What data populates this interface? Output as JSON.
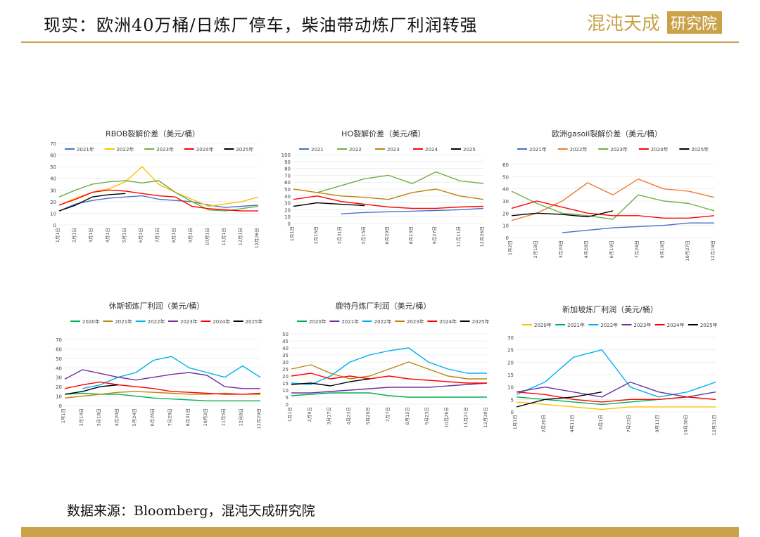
{
  "header": {
    "title": "现实：欧洲40万桶/日炼厂停车，柴油带动炼厂利润转强",
    "logo_text": "混沌天成研究院"
  },
  "footer": {
    "source": "数据来源：Bloomberg，混沌天成研究院"
  },
  "chart_data": [
    {
      "type": "line",
      "title": "RBOB裂解价差（美元/桶）",
      "ylim": [
        0,
        70
      ],
      "yticks": [
        0,
        10,
        20,
        30,
        40,
        50,
        60,
        70
      ],
      "categories": [
        "1月1日",
        "2月1日",
        "3月1日",
        "4月1日",
        "5月1日",
        "6月1日",
        "7月1日",
        "8月1日",
        "9月1日",
        "10月1日",
        "11月1日",
        "12月1日",
        "12月26日"
      ],
      "series": [
        {
          "name": "2021年",
          "color": "#4472c4",
          "values": [
            12,
            18,
            21,
            23,
            24,
            25,
            22,
            21,
            20,
            17,
            15,
            16,
            17
          ]
        },
        {
          "name": "2022年",
          "color": "#ffc000",
          "values": [
            17,
            23,
            28,
            31,
            37,
            50,
            35,
            28,
            22,
            16,
            18,
            20,
            24
          ]
        },
        {
          "name": "2023年",
          "color": "#70ad47",
          "values": [
            24,
            30,
            35,
            37,
            38,
            36,
            38,
            28,
            20,
            13,
            12,
            14,
            16
          ]
        },
        {
          "name": "2024年",
          "color": "#ff0000",
          "values": [
            17,
            22,
            28,
            30,
            29,
            27,
            25,
            24,
            16,
            14,
            13,
            12,
            12
          ]
        },
        {
          "name": "2025年",
          "color": "#000000",
          "values": [
            12,
            17,
            24,
            26,
            27,
            null,
            null,
            null,
            null,
            null,
            null,
            null,
            null
          ]
        }
      ]
    },
    {
      "type": "line",
      "title": "HO裂解价差（美元/桶）",
      "ylim": [
        0,
        100
      ],
      "yticks": [
        0,
        10,
        20,
        30,
        40,
        50,
        60,
        70,
        80,
        90,
        100
      ],
      "categories": [
        "1月1日",
        "2月15日",
        "3月31日",
        "5月15日",
        "6月29日",
        "8月13日",
        "9月27日",
        "11月11日",
        "12月26日"
      ],
      "series": [
        {
          "name": "2021",
          "color": "#4472c4",
          "values": [
            null,
            null,
            14,
            16,
            17,
            18,
            19,
            20,
            22
          ]
        },
        {
          "name": "2022",
          "color": "#70ad47",
          "values": [
            null,
            45,
            55,
            65,
            70,
            58,
            75,
            62,
            58
          ]
        },
        {
          "name": "2023",
          "color": "#b8860b",
          "values": [
            50,
            45,
            40,
            38,
            35,
            45,
            50,
            40,
            35
          ]
        },
        {
          "name": "2024",
          "color": "#ff0000",
          "values": [
            35,
            40,
            32,
            28,
            24,
            22,
            22,
            24,
            25
          ]
        },
        {
          "name": "2025",
          "color": "#000000",
          "values": [
            25,
            30,
            28,
            26,
            null,
            null,
            null,
            null,
            null
          ]
        }
      ]
    },
    {
      "type": "line",
      "title": "欧洲gasoil裂解价差（美元/桶）",
      "ylim": [
        0,
        60
      ],
      "yticks": [
        0,
        10,
        20,
        30,
        40,
        50,
        60
      ],
      "categories": [
        "1月2日",
        "2月18日",
        "3月20日",
        "4月28日",
        "6月19日",
        "7月28日",
        "9月18日",
        "10月27日",
        "12月18日"
      ],
      "series": [
        {
          "name": "2021年",
          "color": "#4472c4",
          "values": [
            null,
            null,
            4,
            6,
            8,
            9,
            10,
            12,
            12
          ]
        },
        {
          "name": "2022年",
          "color": "#ed7d31",
          "values": [
            14,
            20,
            30,
            45,
            35,
            48,
            40,
            38,
            33
          ]
        },
        {
          "name": "2023年",
          "color": "#70ad47",
          "values": [
            38,
            28,
            20,
            18,
            15,
            35,
            30,
            28,
            22
          ]
        },
        {
          "name": "2024年",
          "color": "#ff0000",
          "values": [
            24,
            30,
            25,
            20,
            18,
            18,
            16,
            16,
            18
          ]
        },
        {
          "name": "2025年",
          "color": "#000000",
          "values": [
            18,
            20,
            19,
            17,
            22,
            null,
            null,
            null,
            null
          ]
        }
      ]
    },
    {
      "type": "line",
      "title": "休斯顿炼厂利润（美元/桶）",
      "ylim": [
        0,
        70
      ],
      "yticks": [
        0,
        10,
        20,
        30,
        40,
        50,
        60,
        70
      ],
      "categories": [
        "1月1日",
        "2月14日",
        "3月18日",
        "4月20日",
        "5月24日",
        "6月26日",
        "7月29日",
        "8月31日",
        "10月2日",
        "11月5日",
        "12月8日",
        "12月29日"
      ],
      "series": [
        {
          "name": "2020年",
          "color": "#00b050",
          "values": [
            12,
            13,
            12,
            12,
            10,
            8,
            7,
            6,
            5,
            5,
            5,
            5
          ]
        },
        {
          "name": "2021年",
          "color": "#b8860b",
          "values": [
            8,
            10,
            12,
            14,
            15,
            14,
            13,
            12,
            12,
            13,
            12,
            12
          ]
        },
        {
          "name": "2022年",
          "color": "#00b0f0",
          "values": [
            null,
            18,
            22,
            30,
            35,
            48,
            52,
            40,
            35,
            30,
            42,
            30
          ]
        },
        {
          "name": "2023年",
          "color": "#7030a0",
          "values": [
            28,
            38,
            34,
            30,
            27,
            30,
            33,
            35,
            32,
            20,
            18,
            18
          ]
        },
        {
          "name": "2024年",
          "color": "#ff0000",
          "values": [
            18,
            22,
            25,
            22,
            20,
            18,
            15,
            14,
            13,
            12,
            12,
            13
          ]
        },
        {
          "name": "2025年",
          "color": "#000000",
          "values": [
            12,
            15,
            20,
            22,
            null,
            null,
            null,
            null,
            null,
            null,
            null,
            null
          ]
        }
      ]
    },
    {
      "type": "line",
      "title": "鹿特丹炼厂利润（美元/桶）",
      "ylim": [
        0,
        50
      ],
      "yticks": [
        0,
        5,
        10,
        15,
        20,
        25,
        30,
        35,
        40,
        45,
        50
      ],
      "categories": [
        "1月1日",
        "2月9日",
        "3月17日",
        "4月23日",
        "5月29日",
        "7月7日",
        "8月15日",
        "9月23日",
        "10月26日",
        "11月21日",
        "12月30日"
      ],
      "series": [
        {
          "name": "2020年",
          "color": "#00b050",
          "values": [
            6,
            7,
            8,
            8,
            8,
            6,
            5,
            5,
            5,
            5,
            5
          ]
        },
        {
          "name": "2021年",
          "color": "#7030a0",
          "values": [
            8,
            8,
            9,
            10,
            11,
            12,
            12,
            12,
            13,
            14,
            15
          ]
        },
        {
          "name": "2022年",
          "color": "#00b0f0",
          "values": [
            15,
            14,
            20,
            30,
            35,
            38,
            40,
            30,
            25,
            22,
            22
          ]
        },
        {
          "name": "2023年",
          "color": "#b8860b",
          "values": [
            25,
            28,
            22,
            18,
            20,
            25,
            30,
            25,
            20,
            18,
            18
          ]
        },
        {
          "name": "2024年",
          "color": "#ff0000",
          "values": [
            20,
            22,
            18,
            20,
            18,
            20,
            18,
            17,
            16,
            15,
            15
          ]
        },
        {
          "name": "2025年",
          "color": "#000000",
          "values": [
            14,
            15,
            13,
            16,
            18,
            null,
            null,
            null,
            null,
            null,
            null
          ]
        }
      ]
    },
    {
      "type": "line",
      "title": "新加坡炼厂利润（美元/桶）",
      "ylim": [
        0,
        30
      ],
      "yticks": [
        0,
        5,
        10,
        15,
        20,
        25,
        30
      ],
      "categories": [
        "1月1日",
        "2月20日",
        "4月11日",
        "6月1日",
        "7月23日",
        "9月11日",
        "10月30日",
        "12月31日"
      ],
      "series": [
        {
          "name": "2020年",
          "color": "#ffc000",
          "values": [
            4,
            3,
            2,
            1,
            2,
            2,
            2,
            2
          ]
        },
        {
          "name": "2021年",
          "color": "#00b050",
          "values": [
            6,
            5,
            4,
            3,
            4,
            5,
            6,
            5
          ]
        },
        {
          "name": "2022年",
          "color": "#00b0f0",
          "values": [
            7,
            12,
            22,
            25,
            10,
            6,
            8,
            12
          ]
        },
        {
          "name": "2023年",
          "color": "#7030a0",
          "values": [
            8,
            10,
            8,
            6,
            12,
            8,
            6,
            8
          ]
        },
        {
          "name": "2024年",
          "color": "#ff0000",
          "values": [
            8,
            7,
            5,
            4,
            5,
            5,
            6,
            5
          ]
        },
        {
          "name": "2025年",
          "color": "#000000",
          "values": [
            2,
            5,
            6,
            8,
            null,
            null,
            null,
            null
          ]
        }
      ]
    }
  ]
}
